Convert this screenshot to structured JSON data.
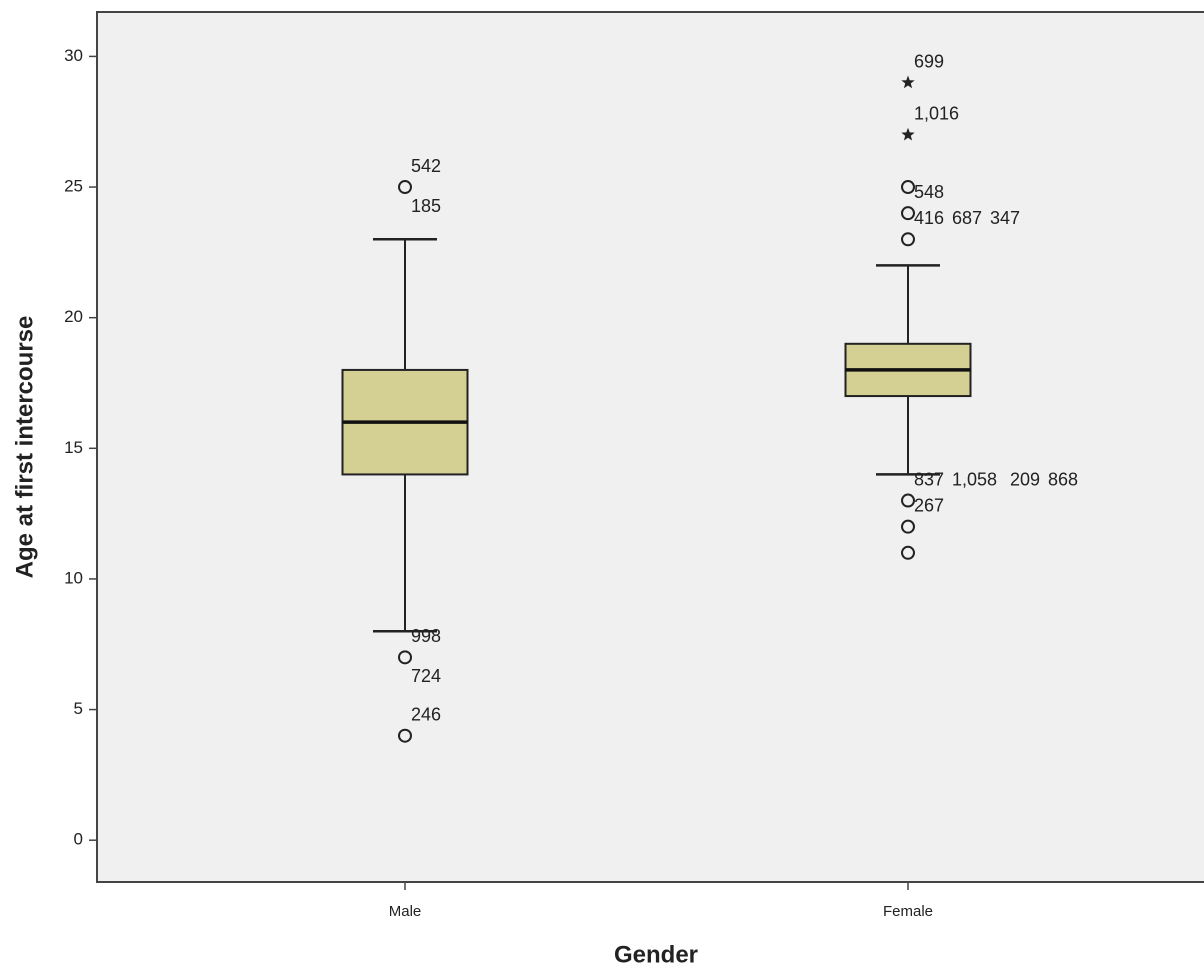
{
  "chart_data": {
    "type": "box",
    "x_label": "Gender",
    "y_label": "Age at first intercourse",
    "categories": [
      "Male",
      "Female"
    ],
    "color": "#d4cf93",
    "ylim": [
      -1.6,
      31.7
    ],
    "yticks": [
      0,
      5,
      10,
      15,
      20,
      25,
      30
    ],
    "boxes": [
      {
        "whisker_low": 8,
        "q1": 14,
        "median": 16,
        "q3": 18,
        "whisker_high": 23,
        "outliers": [
          {
            "value": 25,
            "marker": "circle",
            "labels": [
              "542",
              "185"
            ]
          },
          {
            "value": 7,
            "marker": "circle",
            "labels": [
              "998",
              "724"
            ]
          },
          {
            "value": 4,
            "marker": "circle",
            "labels": [
              "246"
            ]
          }
        ]
      },
      {
        "whisker_low": 14,
        "q1": 17,
        "median": 18,
        "q3": 19,
        "whisker_high": 22,
        "outliers": [
          {
            "value": 29,
            "marker": "star",
            "labels": [
              "699"
            ]
          },
          {
            "value": 27,
            "marker": "star",
            "labels": [
              "1,016"
            ]
          },
          {
            "value": 25,
            "marker": "circle",
            "labels": []
          },
          {
            "value": 24,
            "marker": "circle",
            "labels": [
              "548"
            ]
          },
          {
            "value": 23,
            "marker": "circle",
            "labels": [
              "416",
              "687",
              "347"
            ]
          },
          {
            "value": 13,
            "marker": "circle",
            "labels": [
              "837",
              "1,058",
              "209",
              "868"
            ]
          },
          {
            "value": 12,
            "marker": "circle",
            "labels": [
              "267"
            ]
          },
          {
            "value": 11,
            "marker": "circle",
            "labels": []
          }
        ]
      }
    ]
  }
}
